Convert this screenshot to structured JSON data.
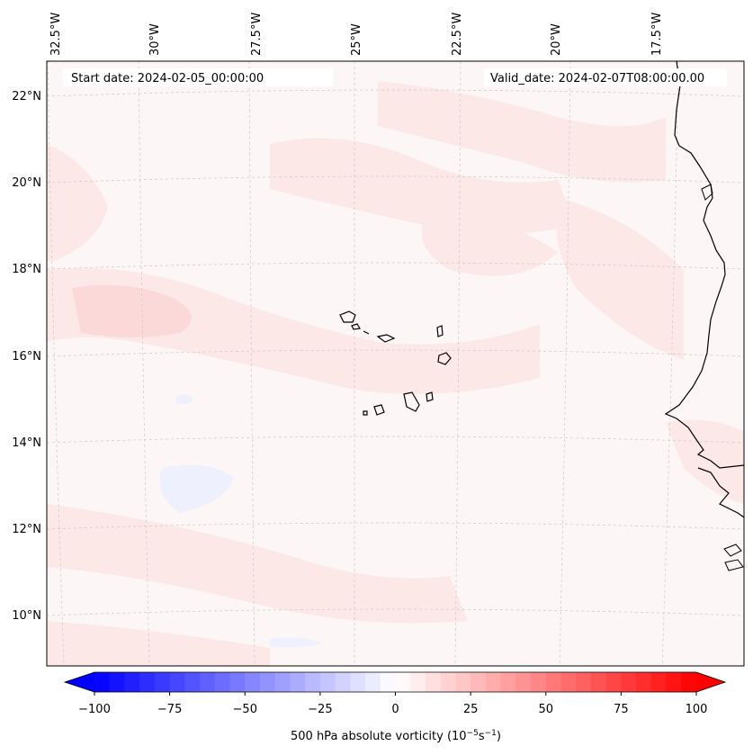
{
  "header": {
    "start_date": "Start date: 2024-02-05_00:00:00",
    "valid_date": "Valid_date: 2024-02-07T08:00:00.00"
  },
  "map": {
    "lon_labels": [
      "32.5°W",
      "30°W",
      "27.5°W",
      "25°W",
      "22.5°W",
      "20°W",
      "17.5°W"
    ],
    "lat_labels": [
      "22°N",
      "20°N",
      "18°N",
      "16°N",
      "14°N",
      "12°N",
      "10°N"
    ],
    "colors": {
      "land_outline": "#000000",
      "gridline": "#c8c8c8",
      "background_field": "#fdf6f6",
      "positive_light": "#fde8e8",
      "positive_medium": "#fbd9d9",
      "negative_light": "#eef0fe"
    }
  },
  "colorbar": {
    "ticks": [
      "−100",
      "−75",
      "−50",
      "−25",
      "0",
      "25",
      "50",
      "75",
      "100"
    ],
    "label": "500 hPa absolute vorticity (10",
    "label_unit_exp1": "−5",
    "label_unit_mid": "s",
    "label_unit_exp2": "−1",
    "label_end": ")",
    "min": -100,
    "max": 100,
    "low_color": "#0000ff",
    "mid_color": "#ffffff",
    "high_color": "#ff0000"
  }
}
